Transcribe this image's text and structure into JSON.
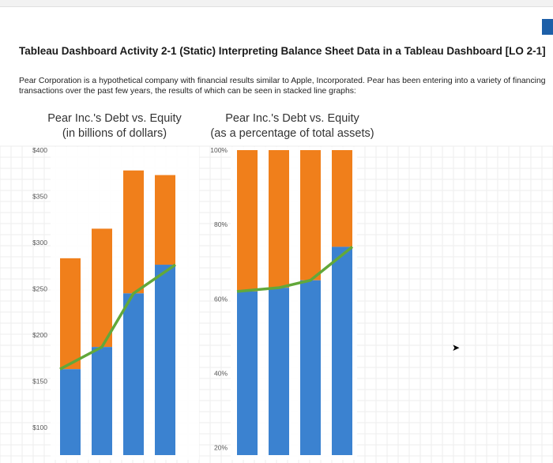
{
  "page": {
    "heading": "Tableau Dashboard Activity 2-1 (Static) Interpreting Balance Sheet Data in a Tableau Dashboard [LO 2-1]",
    "intro": "Pear Corporation is a hypothetical company with financial results similar to Apple, Incorporated. Pear has been entering into a variety of financing transactions over the past few years, the results of which can be seen in stacked line graphs:"
  },
  "colors": {
    "debt": "#3b82d0",
    "equity": "#f07f1b",
    "line": "#62a83a",
    "grid": "#eeeeee",
    "tick": "#555555"
  },
  "chart_data": [
    {
      "type": "bar",
      "title_line1": "Pear Inc.'s Debt vs. Equity",
      "title_line2": "(in billions of dollars)",
      "yticks": [
        "$400",
        "$350",
        "$300",
        "$250",
        "$200",
        "$150",
        "$100"
      ],
      "ytick_values": [
        400,
        350,
        300,
        250,
        200,
        150,
        100
      ],
      "ylim": [
        70,
        400
      ],
      "series": [
        {
          "values": [
            163,
            187,
            245,
            276
          ]
        },
        {
          "values": [
            120,
            128,
            133,
            97
          ]
        }
      ],
      "line_values": [
        163,
        187,
        245,
        276
      ]
    },
    {
      "type": "bar",
      "title_line1": "Pear Inc.'s Debt vs. Equity",
      "title_line2": "(as a percentage of total assets)",
      "yticks": [
        "100%",
        "80%",
        "60%",
        "40%",
        "20%"
      ],
      "ytick_values": [
        100,
        80,
        60,
        40,
        20
      ],
      "ylim": [
        18,
        100
      ],
      "series": [
        {
          "values": [
            62,
            63,
            65,
            74
          ]
        },
        {
          "values": [
            38,
            37,
            35,
            26
          ]
        }
      ],
      "line_values": [
        62,
        63,
        65,
        74
      ]
    }
  ]
}
